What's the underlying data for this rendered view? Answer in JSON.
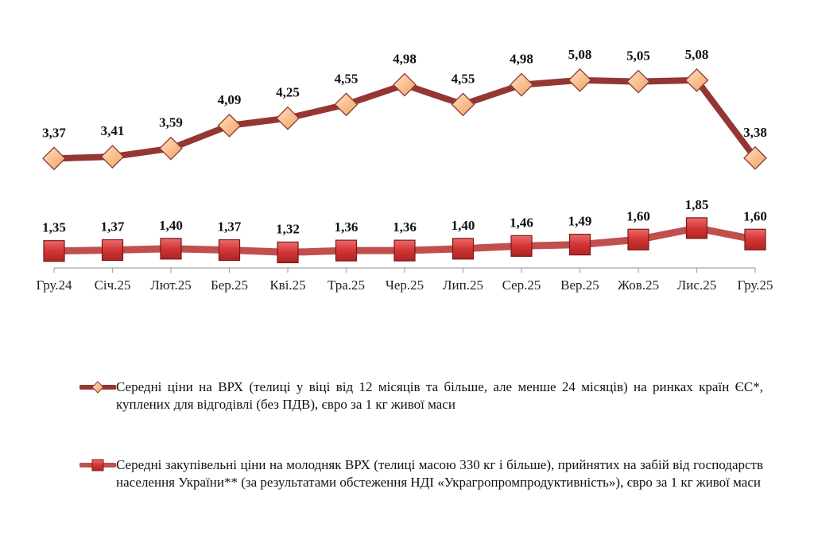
{
  "chart_data": {
    "type": "line",
    "categories": [
      "Гру.24",
      "Січ.25",
      "Лют.25",
      "Бер.25",
      "Кві.25",
      "Тра.25",
      "Чер.25",
      "Лип.25",
      "Сер.25",
      "Вер.25",
      "Жов.25",
      "Лис.25",
      "Гру.25"
    ],
    "series": [
      {
        "name": "Середні ціни на ВРХ (телиці у віці від 12 місяців та більше, але менше 24 місяців) на ринках країн ЄС*, куплених  для відгодівлі (без ПДВ), євро за 1 кг живої маси",
        "values": [
          3.37,
          3.41,
          3.59,
          4.09,
          4.25,
          4.55,
          4.98,
          4.55,
          4.98,
          5.08,
          5.05,
          5.08,
          3.38
        ],
        "labels": [
          "3,37",
          "3,41",
          "3,59",
          "4,09",
          "4,25",
          "4,55",
          "4,98",
          "4,55",
          "4,98",
          "5,08",
          "5,05",
          "5,08",
          "3,38"
        ],
        "line_color": "#943634",
        "marker": "diamond",
        "marker_color": "#fac090"
      },
      {
        "name": "Середні закупівельні ціни на молодняк ВРХ (телиці масою 330 кг і більше), прийнятих на забій від господарств населення України** (за результатами обстеження НДІ «Украгропромпродуктивність»), євро за 1 кг живої маси",
        "values": [
          1.35,
          1.37,
          1.4,
          1.37,
          1.32,
          1.36,
          1.36,
          1.4,
          1.46,
          1.49,
          1.6,
          1.85,
          1.6
        ],
        "labels": [
          "1,35",
          "1,37",
          "1,40",
          "1,37",
          "1,32",
          "1,36",
          "1,36",
          "1,40",
          "1,46",
          "1,49",
          "1,60",
          "1,85",
          "1,60"
        ],
        "line_color": "#c0504d",
        "marker": "square",
        "marker_color": "#d03030"
      }
    ],
    "title": "",
    "xlabel": "",
    "ylabel": "",
    "ylim": [
      0.98,
      5.6
    ],
    "grid": false,
    "legend_position": "bottom"
  }
}
